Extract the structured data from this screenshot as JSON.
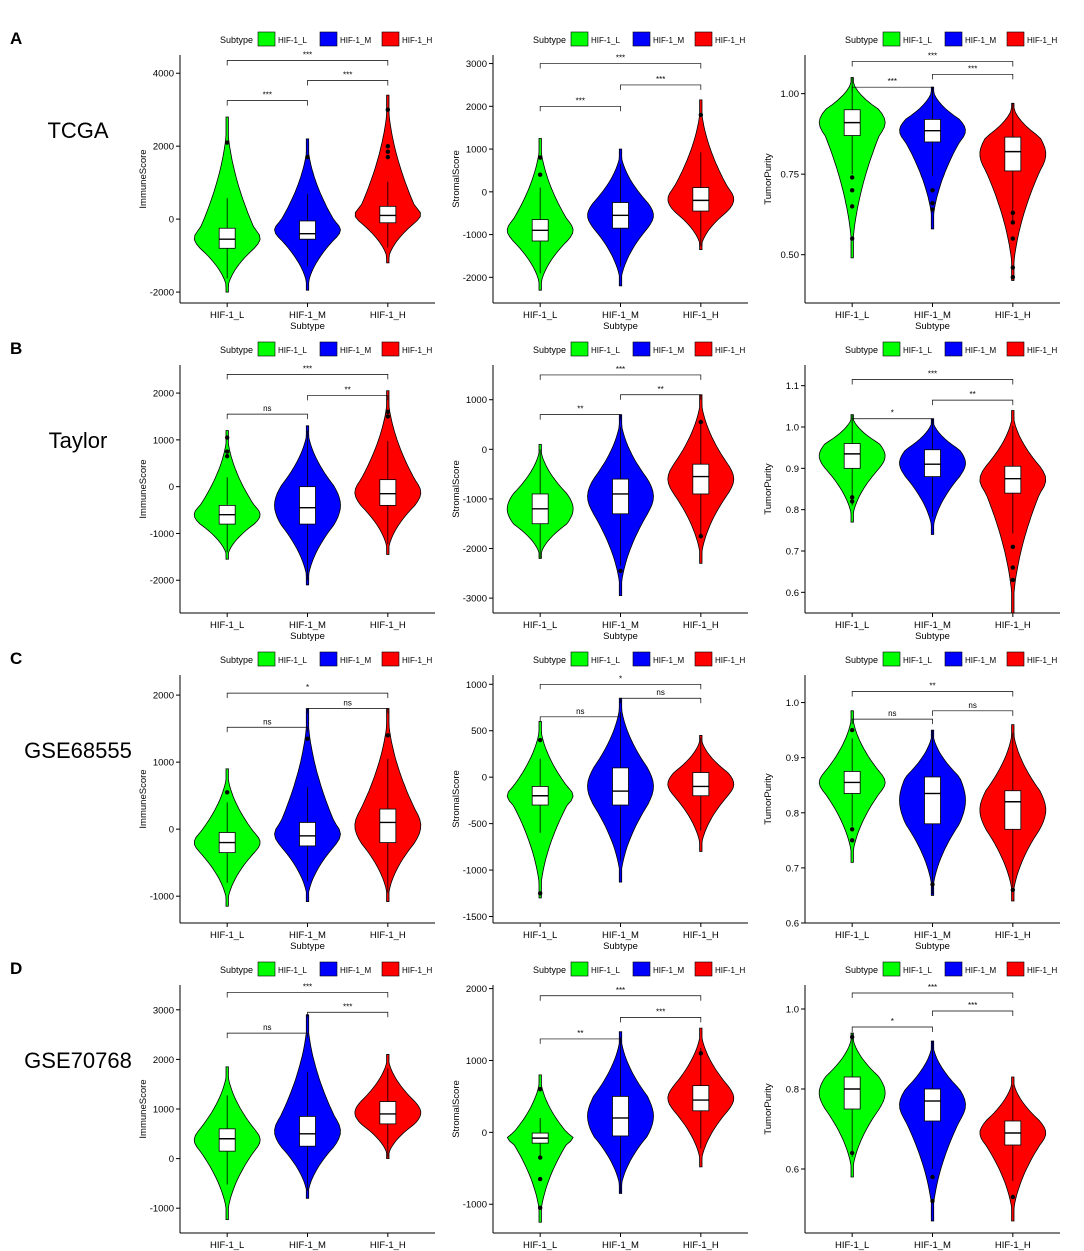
{
  "figure": {
    "legend_title": "Subtype",
    "subtypes": [
      "HIF-1_L",
      "HIF-1_M",
      "HIF-1_H"
    ],
    "colors": {
      "HIF-1_L": "#00ff00",
      "HIF-1_M": "#0000ff",
      "HIF-1_H": "#ff0000"
    },
    "xlabel": "Subtype",
    "rows": [
      {
        "letter": "A",
        "dataset": "TCGA"
      },
      {
        "letter": "B",
        "dataset": "Taylor"
      },
      {
        "letter": "C",
        "dataset": "GSE68555"
      },
      {
        "letter": "D",
        "dataset": "GSE70768"
      }
    ]
  },
  "chart_data": [
    {
      "type": "violin",
      "row": "A",
      "dataset": "TCGA",
      "ylabel": "ImmuneScore",
      "ylim": [
        -2300,
        4500
      ],
      "yticks": [
        -2000,
        0,
        2000,
        4000
      ],
      "ytick_labels": [
        "-2000",
        "0",
        "2000",
        "4000"
      ],
      "categories": [
        "HIF-1_L",
        "HIF-1_M",
        "HIF-1_H"
      ],
      "groups": [
        {
          "min": -2000,
          "q1": -800,
          "median": -550,
          "q3": -250,
          "max": 2800,
          "outliers": [
            2100
          ]
        },
        {
          "min": -1950,
          "q1": -550,
          "median": -400,
          "q3": -50,
          "max": 2200,
          "outliers": [
            1700
          ]
        },
        {
          "min": -1200,
          "q1": -100,
          "median": 100,
          "q3": 350,
          "max": 3400,
          "outliers": [
            1700,
            1850,
            2000,
            3000
          ]
        }
      ],
      "brackets": [
        {
          "from": 0,
          "to": 1,
          "label": "***",
          "y": 3250
        },
        {
          "from": 1,
          "to": 2,
          "label": "***",
          "y": 3800
        },
        {
          "from": 0,
          "to": 2,
          "label": "***",
          "y": 4350
        }
      ]
    },
    {
      "type": "violin",
      "row": "A",
      "dataset": "TCGA",
      "ylabel": "StromalScore",
      "ylim": [
        -2600,
        3200
      ],
      "yticks": [
        -2000,
        -1000,
        0,
        1000,
        2000,
        3000
      ],
      "ytick_labels": [
        "-2000",
        "-1000",
        "0",
        "1000",
        "2000",
        "3000"
      ],
      "categories": [
        "HIF-1_L",
        "HIF-1_M",
        "HIF-1_H"
      ],
      "groups": [
        {
          "min": -2300,
          "q1": -1150,
          "median": -900,
          "q3": -650,
          "max": 1250,
          "outliers": [
            400,
            800
          ]
        },
        {
          "min": -2200,
          "q1": -850,
          "median": -550,
          "q3": -250,
          "max": 1000,
          "outliers": []
        },
        {
          "min": -1350,
          "q1": -450,
          "median": -200,
          "q3": 100,
          "max": 2150,
          "outliers": [
            1800
          ]
        }
      ],
      "brackets": [
        {
          "from": 0,
          "to": 1,
          "label": "***",
          "y": 2000
        },
        {
          "from": 1,
          "to": 2,
          "label": "***",
          "y": 2500
        },
        {
          "from": 0,
          "to": 2,
          "label": "***",
          "y": 3000
        }
      ]
    },
    {
      "type": "violin",
      "row": "A",
      "dataset": "TCGA",
      "ylabel": "TumorPurity",
      "ylim": [
        0.35,
        1.12
      ],
      "yticks": [
        0.5,
        0.75,
        1.0
      ],
      "ytick_labels": [
        "0.50",
        "0.75",
        "1.00"
      ],
      "categories": [
        "HIF-1_L",
        "HIF-1_M",
        "HIF-1_H"
      ],
      "groups": [
        {
          "min": 0.49,
          "q1": 0.87,
          "median": 0.91,
          "q3": 0.95,
          "max": 1.05,
          "outliers": [
            0.55,
            0.65,
            0.7,
            0.74
          ]
        },
        {
          "min": 0.58,
          "q1": 0.85,
          "median": 0.885,
          "q3": 0.92,
          "max": 1.02,
          "outliers": [
            0.64,
            0.66,
            0.7
          ]
        },
        {
          "min": 0.42,
          "q1": 0.76,
          "median": 0.82,
          "q3": 0.865,
          "max": 0.97,
          "outliers": [
            0.43,
            0.46,
            0.55,
            0.6,
            0.63
          ]
        }
      ],
      "brackets": [
        {
          "from": 0,
          "to": 1,
          "label": "***",
          "y": 1.02
        },
        {
          "from": 1,
          "to": 2,
          "label": "***",
          "y": 1.06
        },
        {
          "from": 0,
          "to": 2,
          "label": "***",
          "y": 1.1
        }
      ]
    },
    {
      "type": "violin",
      "row": "B",
      "dataset": "Taylor",
      "ylabel": "ImmuneScore",
      "ylim": [
        -2700,
        2600
      ],
      "yticks": [
        -2000,
        -1000,
        0,
        1000,
        2000
      ],
      "ytick_labels": [
        "-2000",
        "-1000",
        "0",
        "1000",
        "2000"
      ],
      "categories": [
        "HIF-1_L",
        "HIF-1_M",
        "HIF-1_H"
      ],
      "groups": [
        {
          "min": -1550,
          "q1": -800,
          "median": -600,
          "q3": -400,
          "max": 1200,
          "outliers": [
            650,
            750,
            1050
          ]
        },
        {
          "min": -2100,
          "q1": -800,
          "median": -450,
          "q3": 0,
          "max": 1300,
          "outliers": []
        },
        {
          "min": -1450,
          "q1": -400,
          "median": -150,
          "q3": 150,
          "max": 2050,
          "outliers": [
            1500,
            1600
          ]
        }
      ],
      "brackets": [
        {
          "from": 0,
          "to": 1,
          "label": "ns",
          "y": 1550
        },
        {
          "from": 1,
          "to": 2,
          "label": "**",
          "y": 1950
        },
        {
          "from": 0,
          "to": 2,
          "label": "***",
          "y": 2400
        }
      ]
    },
    {
      "type": "violin",
      "row": "B",
      "dataset": "Taylor",
      "ylabel": "StromalScore",
      "ylim": [
        -3300,
        1700
      ],
      "yticks": [
        -3000,
        -2000,
        -1000,
        0,
        1000
      ],
      "ytick_labels": [
        "-3000",
        "-2000",
        "-1000",
        "0",
        "1000"
      ],
      "categories": [
        "HIF-1_L",
        "HIF-1_M",
        "HIF-1_H"
      ],
      "groups": [
        {
          "min": -2200,
          "q1": -1500,
          "median": -1200,
          "q3": -900,
          "max": 100,
          "outliers": []
        },
        {
          "min": -2950,
          "q1": -1300,
          "median": -900,
          "q3": -600,
          "max": 700,
          "outliers": [
            -2450
          ]
        },
        {
          "min": -2300,
          "q1": -900,
          "median": -550,
          "q3": -300,
          "max": 1100,
          "outliers": [
            -1750,
            550
          ]
        }
      ],
      "brackets": [
        {
          "from": 0,
          "to": 1,
          "label": "**",
          "y": 700
        },
        {
          "from": 1,
          "to": 2,
          "label": "**",
          "y": 1100
        },
        {
          "from": 0,
          "to": 2,
          "label": "***",
          "y": 1500
        }
      ]
    },
    {
      "type": "violin",
      "row": "B",
      "dataset": "Taylor",
      "ylabel": "TumorPurity",
      "ylim": [
        0.55,
        1.15
      ],
      "yticks": [
        0.6,
        0.7,
        0.8,
        0.9,
        1.0,
        1.1
      ],
      "ytick_labels": [
        "0.6",
        "0.7",
        "0.8",
        "0.9",
        "1.0",
        "1.1"
      ],
      "categories": [
        "HIF-1_L",
        "HIF-1_M",
        "HIF-1_H"
      ],
      "groups": [
        {
          "min": 0.77,
          "q1": 0.9,
          "median": 0.935,
          "q3": 0.96,
          "max": 1.03,
          "outliers": [
            0.82,
            0.83
          ]
        },
        {
          "min": 0.74,
          "q1": 0.88,
          "median": 0.91,
          "q3": 0.945,
          "max": 1.02,
          "outliers": []
        },
        {
          "min": 0.55,
          "q1": 0.84,
          "median": 0.875,
          "q3": 0.905,
          "max": 1.04,
          "outliers": [
            0.63,
            0.66,
            0.71
          ]
        }
      ],
      "brackets": [
        {
          "from": 0,
          "to": 1,
          "label": "*",
          "y": 1.02
        },
        {
          "from": 1,
          "to": 2,
          "label": "**",
          "y": 1.065
        },
        {
          "from": 0,
          "to": 2,
          "label": "***",
          "y": 1.115
        }
      ]
    },
    {
      "type": "violin",
      "row": "C",
      "dataset": "GSE68555",
      "ylabel": "ImmuneScore",
      "ylim": [
        -1400,
        2300
      ],
      "yticks": [
        -1000,
        0,
        1000,
        2000
      ],
      "ytick_labels": [
        "-1000",
        "0",
        "1000",
        "2000"
      ],
      "categories": [
        "HIF-1_L",
        "HIF-1_M",
        "HIF-1_H"
      ],
      "groups": [
        {
          "min": -1150,
          "q1": -350,
          "median": -200,
          "q3": -50,
          "max": 900,
          "outliers": [
            550
          ]
        },
        {
          "min": -1080,
          "q1": -250,
          "median": -100,
          "q3": 100,
          "max": 1800,
          "outliers": [
            1350
          ]
        },
        {
          "min": -1080,
          "q1": -200,
          "median": 100,
          "q3": 300,
          "max": 1800,
          "outliers": [
            1400
          ]
        }
      ],
      "brackets": [
        {
          "from": 0,
          "to": 1,
          "label": "ns",
          "y": 1520
        },
        {
          "from": 1,
          "to": 2,
          "label": "ns",
          "y": 1800
        },
        {
          "from": 0,
          "to": 2,
          "label": "*",
          "y": 2030
        }
      ]
    },
    {
      "type": "violin",
      "row": "C",
      "dataset": "GSE68555",
      "ylabel": "StromalScore",
      "ylim": [
        -1570,
        1100
      ],
      "yticks": [
        -1500,
        -1000,
        -500,
        0,
        500,
        1000
      ],
      "ytick_labels": [
        "-1500",
        "-1000",
        "-500",
        "0",
        "500",
        "1000"
      ],
      "categories": [
        "HIF-1_L",
        "HIF-1_M",
        "HIF-1_H"
      ],
      "groups": [
        {
          "min": -1300,
          "q1": -300,
          "median": -200,
          "q3": -100,
          "max": 600,
          "outliers": [
            -1250,
            400
          ]
        },
        {
          "min": -1130,
          "q1": -300,
          "median": -150,
          "q3": 100,
          "max": 850,
          "outliers": []
        },
        {
          "min": -800,
          "q1": -200,
          "median": -100,
          "q3": 50,
          "max": 450,
          "outliers": []
        }
      ],
      "brackets": [
        {
          "from": 0,
          "to": 1,
          "label": "ns",
          "y": 650
        },
        {
          "from": 1,
          "to": 2,
          "label": "ns",
          "y": 850
        },
        {
          "from": 0,
          "to": 2,
          "label": "*",
          "y": 1000
        }
      ]
    },
    {
      "type": "violin",
      "row": "C",
      "dataset": "GSE68555",
      "ylabel": "TumorPurity",
      "ylim": [
        0.6,
        1.05
      ],
      "yticks": [
        0.6,
        0.7,
        0.8,
        0.9,
        1.0
      ],
      "ytick_labels": [
        "0.6",
        "0.7",
        "0.8",
        "0.9",
        "1.0"
      ],
      "categories": [
        "HIF-1_L",
        "HIF-1_M",
        "HIF-1_H"
      ],
      "groups": [
        {
          "min": 0.71,
          "q1": 0.835,
          "median": 0.855,
          "q3": 0.875,
          "max": 0.985,
          "outliers": [
            0.75,
            0.77,
            0.95
          ]
        },
        {
          "min": 0.65,
          "q1": 0.78,
          "median": 0.835,
          "q3": 0.865,
          "max": 0.95,
          "outliers": [
            0.67
          ]
        },
        {
          "min": 0.64,
          "q1": 0.77,
          "median": 0.82,
          "q3": 0.84,
          "max": 0.96,
          "outliers": [
            0.66
          ]
        }
      ],
      "brackets": [
        {
          "from": 0,
          "to": 1,
          "label": "ns",
          "y": 0.97
        },
        {
          "from": 1,
          "to": 2,
          "label": "ns",
          "y": 0.985
        },
        {
          "from": 0,
          "to": 2,
          "label": "**",
          "y": 1.02
        }
      ]
    },
    {
      "type": "violin",
      "row": "D",
      "dataset": "GSE70768",
      "ylabel": "ImmuneScore",
      "ylim": [
        -1500,
        3500
      ],
      "yticks": [
        -1000,
        0,
        1000,
        2000,
        3000
      ],
      "ytick_labels": [
        "-1000",
        "0",
        "1000",
        "2000",
        "3000"
      ],
      "categories": [
        "HIF-1_L",
        "HIF-1_M",
        "HIF-1_H"
      ],
      "groups": [
        {
          "min": -1230,
          "q1": 150,
          "median": 400,
          "q3": 600,
          "max": 1850,
          "outliers": []
        },
        {
          "min": -800,
          "q1": 250,
          "median": 500,
          "q3": 850,
          "max": 2900,
          "outliers": []
        },
        {
          "min": 0,
          "q1": 700,
          "median": 900,
          "q3": 1150,
          "max": 2100,
          "outliers": []
        }
      ],
      "brackets": [
        {
          "from": 0,
          "to": 1,
          "label": "ns",
          "y": 2530
        },
        {
          "from": 1,
          "to": 2,
          "label": "***",
          "y": 2950
        },
        {
          "from": 0,
          "to": 2,
          "label": "***",
          "y": 3350
        }
      ]
    },
    {
      "type": "violin",
      "row": "D",
      "dataset": "GSE70768",
      "ylabel": "StromalScore",
      "ylim": [
        -1400,
        2050
      ],
      "yticks": [
        -1000,
        0,
        1000,
        2000
      ],
      "ytick_labels": [
        "-1000",
        "0",
        "1000",
        "2000"
      ],
      "categories": [
        "HIF-1_L",
        "HIF-1_M",
        "HIF-1_H"
      ],
      "groups": [
        {
          "min": -1250,
          "q1": -150,
          "median": -80,
          "q3": -10,
          "max": 800,
          "outliers": [
            -1050,
            -650,
            -350,
            600
          ]
        },
        {
          "min": -850,
          "q1": -50,
          "median": 200,
          "q3": 500,
          "max": 1400,
          "outliers": []
        },
        {
          "min": -480,
          "q1": 300,
          "median": 450,
          "q3": 650,
          "max": 1450,
          "outliers": [
            1100
          ]
        }
      ],
      "brackets": [
        {
          "from": 0,
          "to": 1,
          "label": "**",
          "y": 1300
        },
        {
          "from": 1,
          "to": 2,
          "label": "***",
          "y": 1600
        },
        {
          "from": 0,
          "to": 2,
          "label": "***",
          "y": 1900
        }
      ]
    },
    {
      "type": "violin",
      "row": "D",
      "dataset": "GSE70768",
      "ylabel": "TumorPurity",
      "ylim": [
        0.44,
        1.06
      ],
      "yticks": [
        0.6,
        0.8,
        1.0
      ],
      "ytick_labels": [
        "0.6",
        "0.8",
        "1.0"
      ],
      "categories": [
        "HIF-1_L",
        "HIF-1_M",
        "HIF-1_H"
      ],
      "groups": [
        {
          "min": 0.58,
          "q1": 0.75,
          "median": 0.8,
          "q3": 0.83,
          "max": 0.94,
          "outliers": [
            0.64,
            0.93
          ]
        },
        {
          "min": 0.47,
          "q1": 0.72,
          "median": 0.77,
          "q3": 0.8,
          "max": 0.92,
          "outliers": [
            0.52,
            0.58
          ]
        },
        {
          "min": 0.47,
          "q1": 0.66,
          "median": 0.69,
          "q3": 0.72,
          "max": 0.83,
          "outliers": [
            0.53
          ]
        }
      ],
      "brackets": [
        {
          "from": 0,
          "to": 1,
          "label": "*",
          "y": 0.955
        },
        {
          "from": 1,
          "to": 2,
          "label": "***",
          "y": 0.995
        },
        {
          "from": 0,
          "to": 2,
          "label": "***",
          "y": 1.04
        }
      ]
    }
  ]
}
